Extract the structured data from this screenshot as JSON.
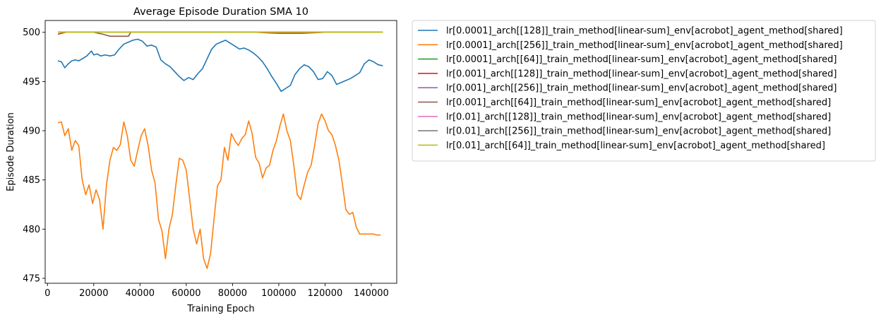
{
  "chart_data": {
    "type": "line",
    "title": "Average Episode Duration SMA 10",
    "xlabel": "Training Epoch",
    "ylabel": "Episode Duration",
    "xlim": [
      -1000,
      151000
    ],
    "ylim": [
      474.5,
      501.2
    ],
    "xticks": [
      0,
      20000,
      40000,
      60000,
      80000,
      100000,
      120000,
      140000
    ],
    "xtick_labels": [
      "0",
      "20000",
      "40000",
      "60000",
      "80000",
      "100000",
      "120000",
      "140000"
    ],
    "yticks": [
      475,
      480,
      485,
      490,
      495,
      500
    ],
    "ytick_labels": [
      "475",
      "480",
      "485",
      "490",
      "495",
      "500"
    ],
    "grid": false,
    "legend_position": "outside-right",
    "series": [
      {
        "name": "lr[0.0001]_arch[[128]]_train_method[linear-sum]_env[acrobot]_agent_method[shared]",
        "color": "#1f77b4",
        "x": [
          4500,
          6000,
          7500,
          9000,
          10500,
          12000,
          13500,
          15000,
          17000,
          19000,
          20000,
          21500,
          23000,
          25000,
          27000,
          29000,
          31000,
          33000,
          35000,
          37000,
          39000,
          41000,
          43000,
          45000,
          47000,
          49000,
          51000,
          53000,
          55000,
          57000,
          59000,
          61000,
          63000,
          65000,
          67000,
          69000,
          71000,
          73000,
          75000,
          77000,
          79000,
          81000,
          83000,
          85000,
          87000,
          89000,
          91000,
          93000,
          95000,
          97000,
          99000,
          101000,
          103000,
          105000,
          107000,
          109000,
          111000,
          113000,
          115000,
          117000,
          119000,
          121000,
          123000,
          125000,
          127000,
          129000,
          131000,
          133000,
          135000,
          137000,
          139000,
          141000,
          143000,
          145000
        ],
        "y": [
          497.1,
          497.0,
          496.4,
          496.8,
          497.1,
          497.2,
          497.1,
          497.3,
          497.6,
          498.1,
          497.7,
          497.8,
          497.6,
          497.7,
          497.6,
          497.7,
          498.3,
          498.8,
          499.0,
          499.2,
          499.3,
          499.1,
          498.6,
          498.7,
          498.5,
          497.2,
          496.8,
          496.5,
          496.0,
          495.5,
          495.1,
          495.4,
          495.2,
          495.8,
          496.3,
          497.3,
          498.3,
          498.8,
          499.0,
          499.2,
          498.9,
          498.6,
          498.3,
          498.4,
          498.2,
          497.9,
          497.5,
          497.0,
          496.3,
          495.5,
          494.8,
          494.0,
          494.3,
          494.6,
          495.7,
          496.3,
          496.7,
          496.5,
          496.0,
          495.2,
          495.3,
          496.0,
          495.6,
          494.7,
          494.9,
          495.1,
          495.3,
          495.6,
          495.9,
          496.8,
          497.2,
          497.0,
          496.7,
          496.6
        ]
      },
      {
        "name": "lr[0.0001]_arch[[256]]_train_method[linear-sum]_env[acrobot]_agent_method[shared]",
        "color": "#ff7f0e",
        "x": [
          4500,
          6000,
          7500,
          9000,
          10500,
          12000,
          13500,
          15000,
          16500,
          18000,
          19500,
          21000,
          22500,
          24000,
          25500,
          27000,
          28500,
          30000,
          31500,
          33000,
          34500,
          36000,
          37500,
          39000,
          40500,
          42000,
          43500,
          45000,
          46500,
          48000,
          49500,
          51000,
          52500,
          54000,
          55500,
          57000,
          58500,
          60000,
          61500,
          63000,
          64500,
          66000,
          67500,
          69000,
          70500,
          72000,
          73500,
          75000,
          76500,
          78000,
          79500,
          81000,
          82500,
          84000,
          85500,
          87000,
          88500,
          90000,
          91500,
          93000,
          94500,
          96000,
          97500,
          99000,
          100500,
          102000,
          103500,
          105000,
          106500,
          108000,
          109500,
          111000,
          112500,
          114000,
          115500,
          117000,
          118500,
          120000,
          121500,
          123000,
          124500,
          126000,
          127500,
          129000,
          130500,
          132000,
          133500,
          135000,
          136500,
          138000,
          139500,
          141000,
          142500,
          144000
        ],
        "y": [
          490.8,
          490.9,
          489.5,
          490.2,
          488.0,
          489.0,
          488.5,
          485.0,
          483.5,
          484.5,
          482.6,
          484.0,
          483.0,
          480.0,
          484.5,
          487.0,
          488.3,
          488.0,
          488.6,
          490.9,
          489.5,
          487.0,
          486.4,
          488.0,
          489.5,
          490.2,
          488.5,
          486.0,
          484.7,
          481.0,
          479.8,
          477.0,
          480.0,
          481.5,
          484.5,
          487.2,
          487.0,
          486.0,
          483.0,
          480.0,
          478.5,
          480.0,
          477.0,
          476.0,
          477.5,
          481.0,
          484.4,
          485.0,
          488.3,
          487.0,
          489.7,
          489.0,
          488.5,
          489.2,
          489.6,
          491.0,
          489.7,
          487.3,
          486.7,
          485.2,
          486.2,
          486.5,
          488.0,
          489.0,
          490.5,
          491.7,
          490.0,
          489.0,
          486.5,
          483.5,
          483.0,
          484.5,
          485.8,
          486.5,
          488.5,
          490.7,
          491.7,
          491.0,
          490.0,
          489.6,
          488.5,
          487.0,
          484.6,
          482.0,
          481.5,
          481.7,
          480.2,
          479.5,
          479.5,
          479.5,
          479.5,
          479.5,
          479.4,
          479.4
        ]
      },
      {
        "name": "lr[0.0001]_arch[[64]]_train_method[linear-sum]_env[acrobot]_agent_method[shared]",
        "color": "#2ca02c",
        "x": [
          4500,
          145000
        ],
        "y": [
          500.0,
          500.0
        ]
      },
      {
        "name": "lr[0.001]_arch[[128]]_train_method[linear-sum]_env[acrobot]_agent_method[shared]",
        "color": "#d62728",
        "x": [
          4500,
          6000,
          8000,
          30000,
          60000,
          90000,
          100000,
          110000,
          120000,
          145000
        ],
        "y": [
          499.8,
          499.9,
          500.0,
          500.0,
          500.0,
          500.0,
          499.9,
          499.9,
          500.0,
          500.0
        ]
      },
      {
        "name": "lr[0.001]_arch[[256]]_train_method[linear-sum]_env[acrobot]_agent_method[shared]",
        "color": "#9467bd",
        "x": [
          4500,
          145000
        ],
        "y": [
          500.0,
          500.0
        ]
      },
      {
        "name": "lr[0.001]_arch[[64]]_train_method[linear-sum]_env[acrobot]_agent_method[shared]",
        "color": "#8c564b",
        "x": [
          4500,
          20000,
          24000,
          27000,
          30000,
          33000,
          35000,
          36000,
          60000,
          145000
        ],
        "y": [
          500.0,
          500.0,
          499.8,
          499.6,
          499.6,
          499.6,
          499.6,
          500.0,
          500.0,
          500.0
        ]
      },
      {
        "name": "lr[0.01]_arch[[128]]_train_method[linear-sum]_env[acrobot]_agent_method[shared]",
        "color": "#e377c2",
        "x": [
          4500,
          145000
        ],
        "y": [
          500.0,
          500.0
        ]
      },
      {
        "name": "lr[0.01]_arch[[256]]_train_method[linear-sum]_env[acrobot]_agent_method[shared]",
        "color": "#7f7f7f",
        "x": [
          4500,
          145000
        ],
        "y": [
          500.0,
          500.0
        ]
      },
      {
        "name": "lr[0.01]_arch[[64]]_train_method[linear-sum]_env[acrobot]_agent_method[shared]",
        "color": "#bcbd22",
        "x": [
          4500,
          145000
        ],
        "y": [
          500.0,
          500.0
        ]
      }
    ]
  }
}
